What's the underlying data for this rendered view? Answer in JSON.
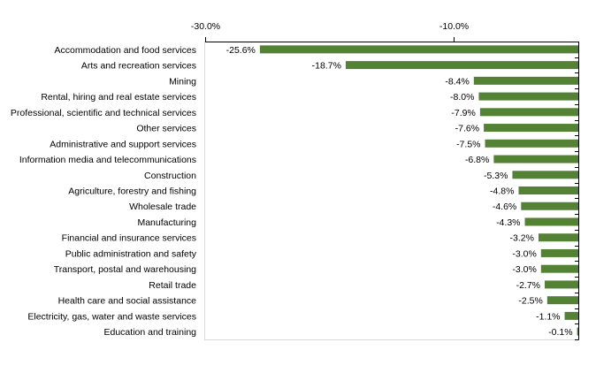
{
  "chart_data": {
    "type": "bar",
    "orientation": "horizontal",
    "title": "",
    "xlabel": "",
    "ylabel": "",
    "xlim": [
      -30,
      0
    ],
    "x_ticks": [
      {
        "value": -30,
        "label": "-30.0%"
      },
      {
        "value": -10,
        "label": "-10.0%"
      }
    ],
    "axis_position": "top",
    "grid": false,
    "legend": "none",
    "bar_color": "#548235",
    "categories": [
      "Accommodation and food services",
      "Arts and recreation services",
      "Mining",
      "Rental, hiring and real estate services",
      "Professional, scientific and technical services",
      "Other services",
      "Administrative and support services",
      "Information media and telecommunications",
      "Construction",
      "Agriculture, forestry and fishing",
      "Wholesale trade",
      "Manufacturing",
      "Financial and insurance services",
      "Public administration and safety",
      "Transport, postal and warehousing",
      "Retail trade",
      "Health care and social assistance",
      "Electricity, gas, water and waste services",
      "Education and training"
    ],
    "values": [
      -25.6,
      -18.7,
      -8.4,
      -8.0,
      -7.9,
      -7.6,
      -7.5,
      -6.8,
      -5.3,
      -4.8,
      -4.6,
      -4.3,
      -3.2,
      -3.0,
      -3.0,
      -2.7,
      -2.5,
      -1.1,
      -0.1
    ],
    "data_labels": [
      "-25.6%",
      "-18.7%",
      "-8.4%",
      "-8.0%",
      "-7.9%",
      "-7.6%",
      "-7.5%",
      "-6.8%",
      "-5.3%",
      "-4.8%",
      "-4.6%",
      "-4.3%",
      "-3.2%",
      "-3.0%",
      "-3.0%",
      "-2.7%",
      "-2.5%",
      "-1.1%",
      "-0.1%"
    ]
  }
}
